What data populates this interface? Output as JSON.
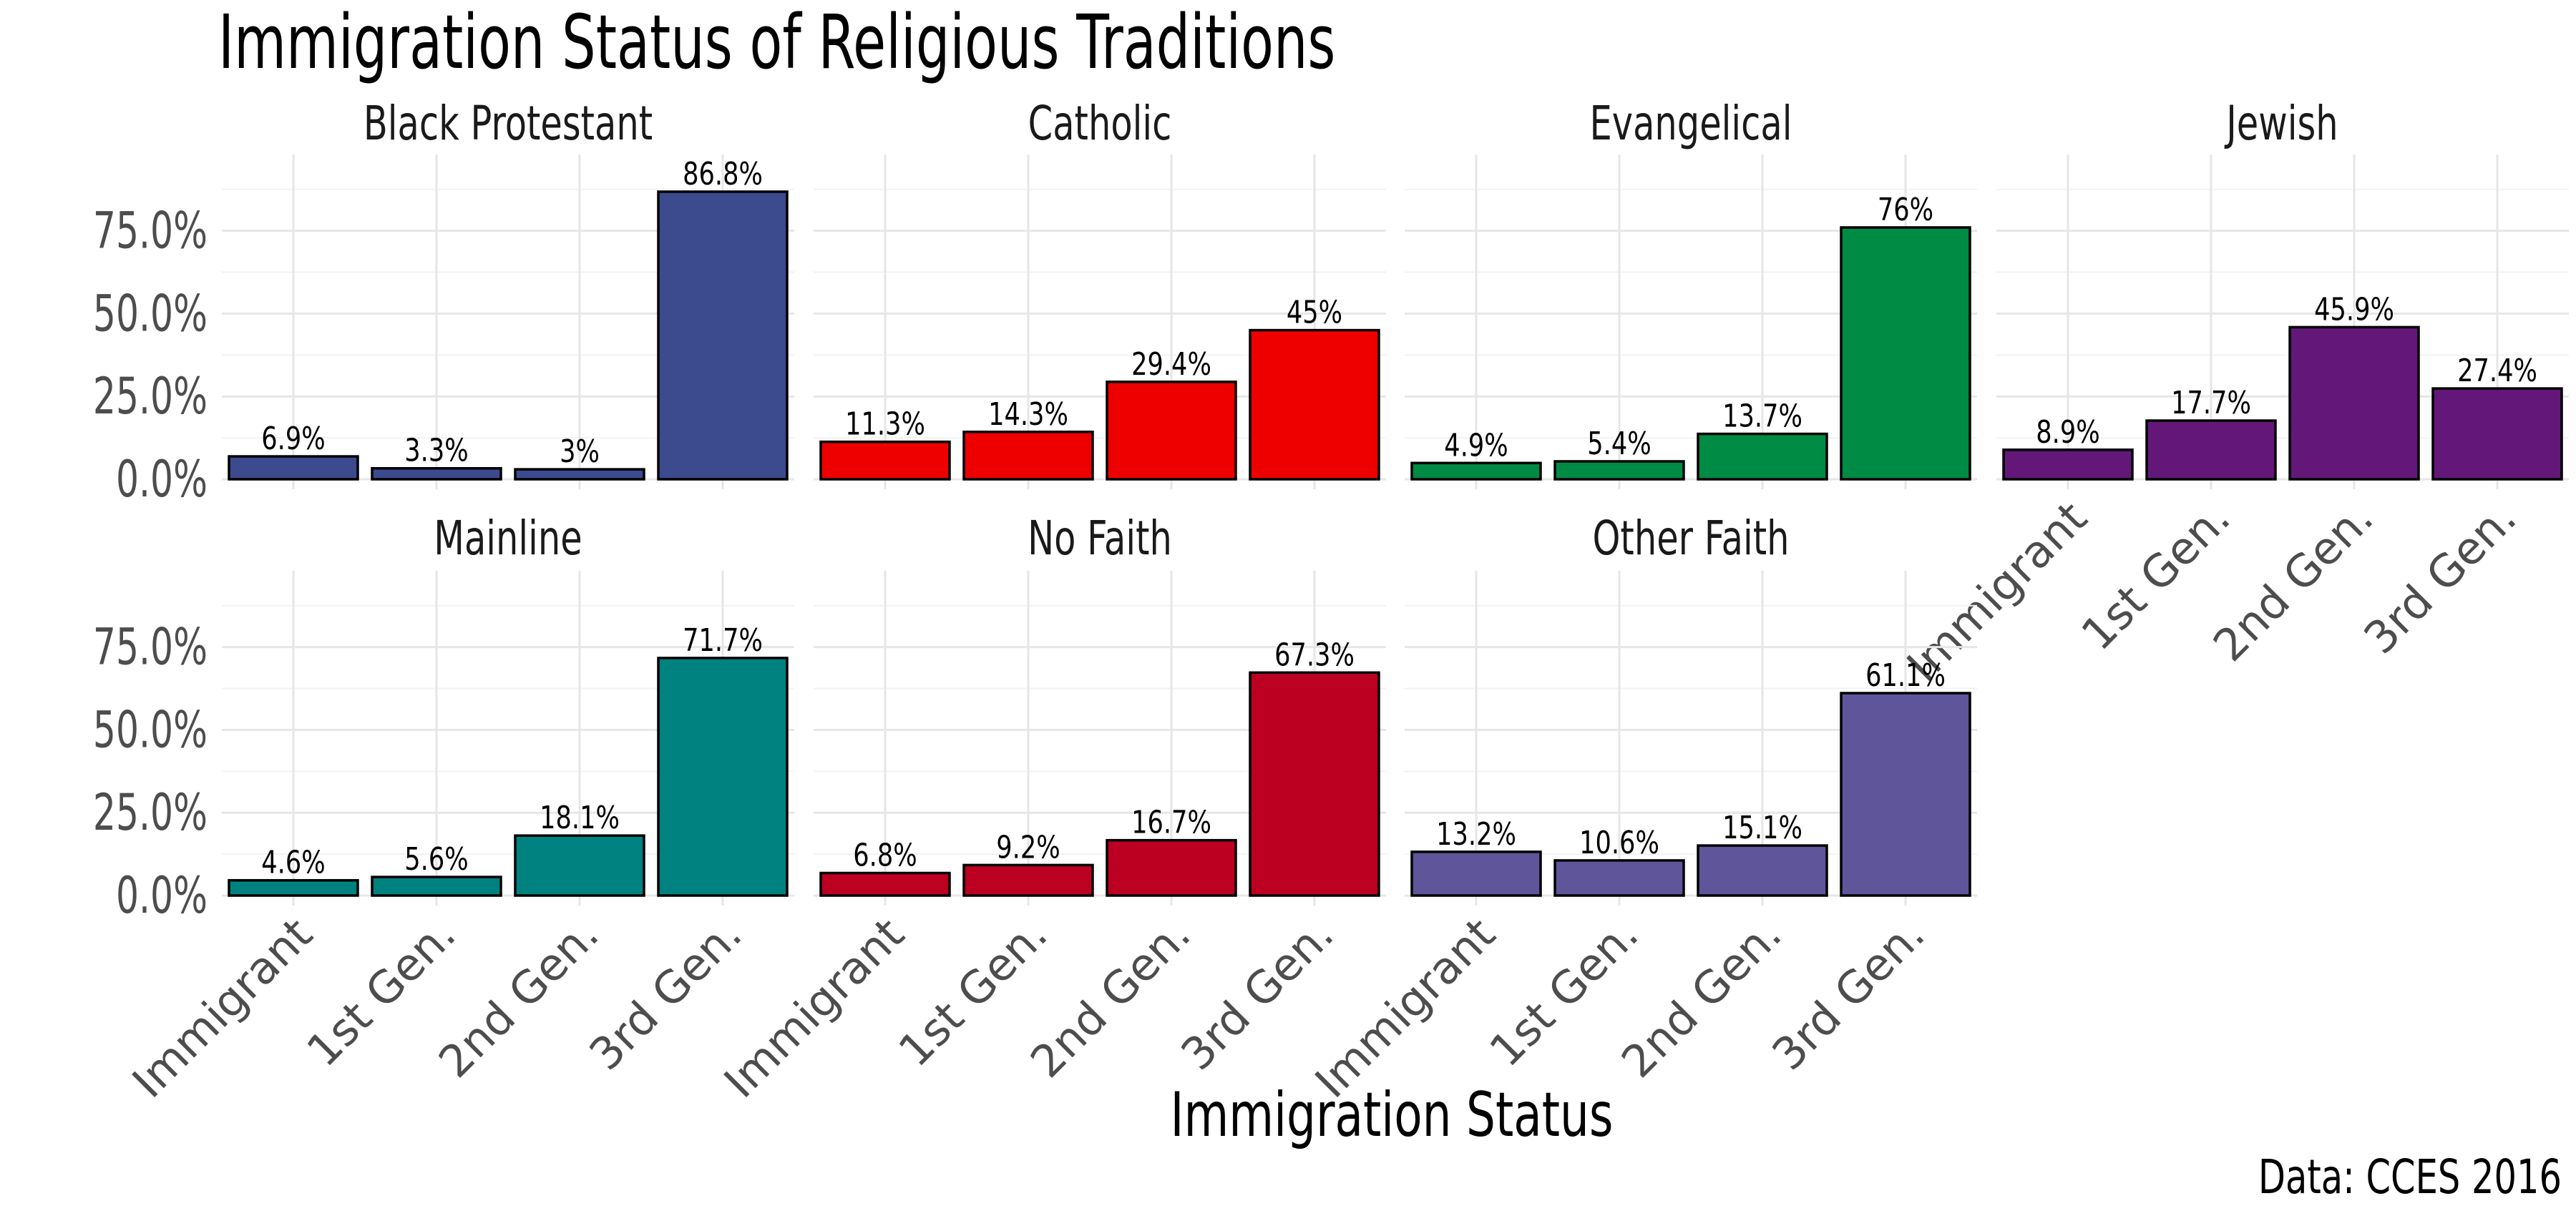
{
  "chart_data": {
    "type": "bar",
    "title": "Immigration Status of Religious Traditions",
    "xlabel": "Immigration Status",
    "ylabel": "",
    "caption": "Data: CCES 2016",
    "categories": [
      "Immigrant",
      "1st Gen.",
      "2nd Gen.",
      "3rd Gen."
    ],
    "y_ticks": [
      "0.0%",
      "25.0%",
      "50.0%",
      "75.0%"
    ],
    "y_tick_values": [
      0,
      25,
      50,
      75
    ],
    "ylim": [
      0,
      95
    ],
    "grid": true,
    "legend": "none",
    "facets": [
      {
        "name": "Black Protestant",
        "color": "#3C4A8E",
        "values": [
          6.9,
          3.3,
          3.0,
          86.8
        ],
        "labels": [
          "6.9%",
          "3.3%",
          "3%",
          "86.8%"
        ]
      },
      {
        "name": "Catholic",
        "color": "#EE0000",
        "values": [
          11.3,
          14.3,
          29.4,
          45.0
        ],
        "labels": [
          "11.3%",
          "14.3%",
          "29.4%",
          "45%"
        ]
      },
      {
        "name": "Evangelical",
        "color": "#008B45",
        "values": [
          4.9,
          5.4,
          13.7,
          76.0
        ],
        "labels": [
          "4.9%",
          "5.4%",
          "13.7%",
          "76%"
        ]
      },
      {
        "name": "Jewish",
        "color": "#631879",
        "values": [
          8.9,
          17.7,
          45.9,
          27.4
        ],
        "labels": [
          "8.9%",
          "17.7%",
          "45.9%",
          "27.4%"
        ]
      },
      {
        "name": "Mainline",
        "color": "#008280",
        "values": [
          4.6,
          5.6,
          18.1,
          71.7
        ],
        "labels": [
          "4.6%",
          "5.6%",
          "18.1%",
          "71.7%"
        ]
      },
      {
        "name": "No Faith",
        "color": "#BB0021",
        "values": [
          6.8,
          9.2,
          16.7,
          67.3
        ],
        "labels": [
          "6.8%",
          "9.2%",
          "16.7%",
          "67.3%"
        ]
      },
      {
        "name": "Other Faith",
        "color": "#5F559B",
        "values": [
          13.2,
          10.6,
          15.1,
          61.1
        ],
        "labels": [
          "13.2%",
          "10.6%",
          "15.1%",
          "61.1%"
        ]
      }
    ]
  }
}
